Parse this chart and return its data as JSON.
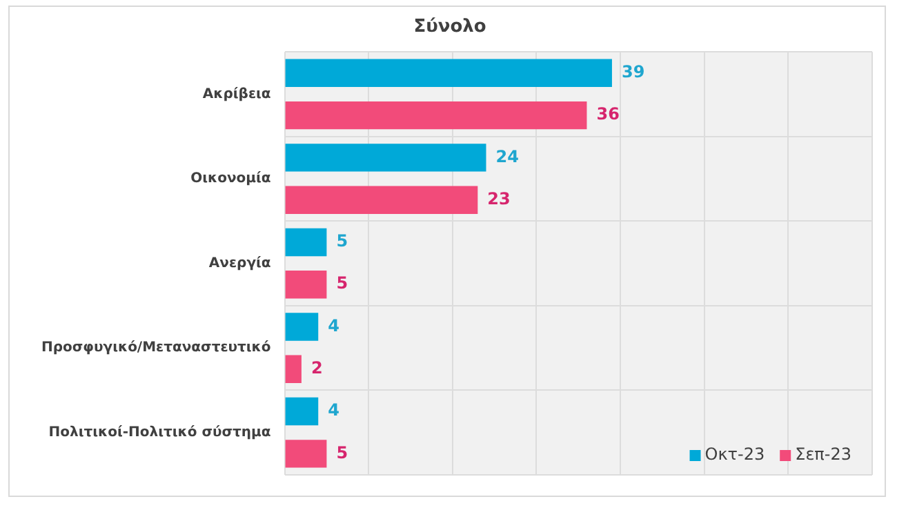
{
  "chart_data": {
    "type": "bar",
    "orientation": "horizontal",
    "title": "Σύνολο",
    "categories": [
      "Ακρίβεια",
      "Οικονομία",
      "Ανεργία",
      "Προσφυγικό/Μεταναστευτικό",
      "Πολιτικοί-Πολιτικό σύστημα"
    ],
    "series": [
      {
        "name": "Οκτ-23",
        "color": "#00a9d8",
        "values": [
          39,
          24,
          5,
          4,
          4
        ]
      },
      {
        "name": "Σεπ-23",
        "color": "#f24b7a",
        "values": [
          36,
          23,
          5,
          2,
          5
        ]
      }
    ],
    "xlim": [
      0,
      70
    ],
    "xticks": [
      {
        "value": 0,
        "label": null
      },
      {
        "value": 10,
        "label": null
      },
      {
        "value": 20,
        "label": null
      },
      {
        "value": 30,
        "label": null
      },
      {
        "value": 40,
        "label": null
      },
      {
        "value": 50,
        "label": null
      },
      {
        "value": 60,
        "label": null
      },
      {
        "value": 70,
        "label": null
      }
    ],
    "tick_labels": "y",
    "grid": true,
    "legend": "bottom right",
    "data_labels": true
  }
}
